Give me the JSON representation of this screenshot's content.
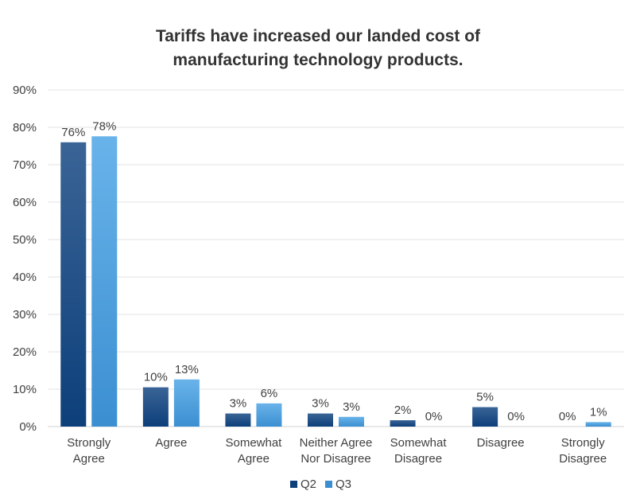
{
  "chart_data": {
    "type": "bar",
    "title_lines": [
      "Tariffs have increased our landed cost of",
      "manufacturing technology products."
    ],
    "categories": [
      [
        "Strongly",
        "Agree"
      ],
      [
        "Agree"
      ],
      [
        "Somewhat",
        "Agree"
      ],
      [
        "Neither Agree",
        "Nor Disagree"
      ],
      [
        "Somewhat",
        "Disagree"
      ],
      [
        "Disagree"
      ],
      [
        "Strongly",
        "Disagree"
      ]
    ],
    "series": [
      {
        "name": "Q2",
        "values": [
          76,
          10.5,
          3.5,
          3.5,
          1.7,
          5.2,
          0
        ],
        "labels": [
          "76%",
          "10%",
          "3%",
          "3%",
          "2%",
          "5%",
          "0%"
        ],
        "color": "#0d3f7a",
        "color_top": "#3a6496"
      },
      {
        "name": "Q3",
        "values": [
          77.6,
          12.6,
          6.2,
          2.6,
          0,
          0,
          1.2
        ],
        "labels": [
          "78%",
          "13%",
          "6%",
          "3%",
          "0%",
          "0%",
          "1%"
        ],
        "color": "#3b8fd1",
        "color_top": "#69b3ea"
      }
    ],
    "ylim": [
      0,
      90
    ],
    "ytick_step": 10,
    "ytick_labels": [
      "0%",
      "10%",
      "20%",
      "30%",
      "40%",
      "50%",
      "60%",
      "70%",
      "80%",
      "90%"
    ],
    "legend_position": "bottom-center",
    "grid": true
  }
}
